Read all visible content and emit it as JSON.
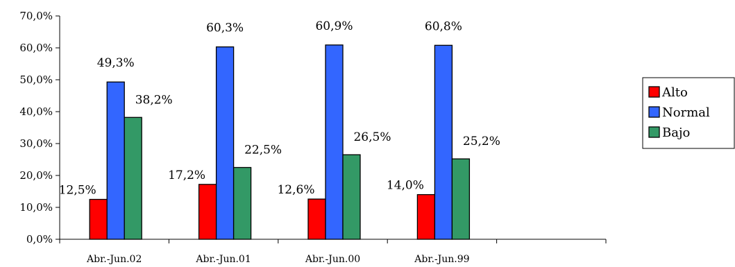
{
  "chart_data": {
    "type": "bar",
    "categories": [
      "Abr.-Jun.02",
      "Abr.-Jun.01",
      "Abr.-Jun.00",
      "Abr.-Jun.99"
    ],
    "series": [
      {
        "name": "Alto",
        "values": [
          12.5,
          17.2,
          12.6,
          14.0
        ],
        "labels": [
          "12,5%",
          "17,2%",
          "12,6%",
          "14,0%"
        ],
        "color": "#ff0000"
      },
      {
        "name": "Normal",
        "values": [
          49.3,
          60.3,
          60.9,
          60.8
        ],
        "labels": [
          "49,3%",
          "60,3%",
          "60,9%",
          "60,8%"
        ],
        "color": "#3366ff"
      },
      {
        "name": "Bajo",
        "values": [
          38.2,
          22.5,
          26.5,
          25.2
        ],
        "labels": [
          "38,2%",
          "22,5%",
          "26,5%",
          "25,2%"
        ],
        "color": "#339966"
      }
    ],
    "ylim": [
      0,
      70
    ],
    "yticks": [
      0,
      10,
      20,
      30,
      40,
      50,
      60,
      70
    ],
    "ytick_labels": [
      "0,0%",
      "10,0%",
      "20,0%",
      "30,0%",
      "40,0%",
      "50,0%",
      "60,0%",
      "70,0%"
    ],
    "category_slots": 5,
    "grid": false,
    "legend_position": "right",
    "title": "",
    "xlabel": "",
    "ylabel": ""
  }
}
